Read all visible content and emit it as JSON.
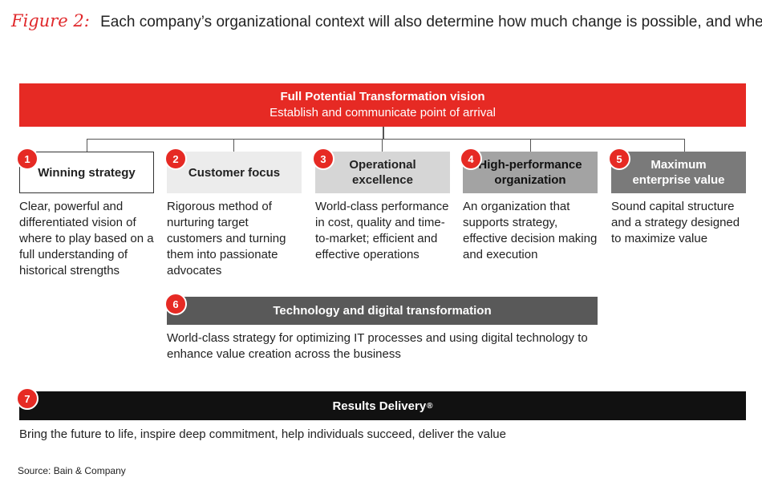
{
  "figure": {
    "label": "Figure 2:",
    "caption": "Each company’s organizational context will also determine how much change is possible, and when"
  },
  "vision": {
    "title": "Full Potential Transformation vision",
    "subtitle": "Establish and communicate point of arrival"
  },
  "pillars": [
    {
      "number": "1",
      "title": "Winning strategy",
      "description": "Clear, powerful and differentiated vision of where to play based on a full understanding of historical strengths"
    },
    {
      "number": "2",
      "title": "Customer focus",
      "description": "Rigorous method of nurturing target customers and turning them into passionate advocates"
    },
    {
      "number": "3",
      "title": "Operational excellence",
      "description": "World-class performance in cost, quality and time-to-market; efficient and effective operations"
    },
    {
      "number": "4",
      "title": "High-performance organization",
      "description": "An organization that supports strategy, effective decision making and execution"
    },
    {
      "number": "5",
      "title": "Maximum enterprise value",
      "description": "Sound capital structure and a strategy designed to maximize value"
    }
  ],
  "technology": {
    "number": "6",
    "title": "Technology and digital transformation",
    "description": "World-class strategy for optimizing IT processes and using digital technology to enhance value creation across the business"
  },
  "results": {
    "number": "7",
    "title": "Results Delivery",
    "mark": "®",
    "description": "Bring the future to life, inspire deep commitment, help individuals succeed, deliver the value"
  },
  "source": "Source: Bain & Company",
  "colors": {
    "accent_red": "#e62a24",
    "pillar_1": "#ffffff",
    "pillar_2": "#ececec",
    "pillar_3": "#d6d6d6",
    "pillar_4": "#a3a3a3",
    "pillar_5": "#7a7a7a",
    "technology_bar": "#595959",
    "results_bar": "#111111"
  }
}
